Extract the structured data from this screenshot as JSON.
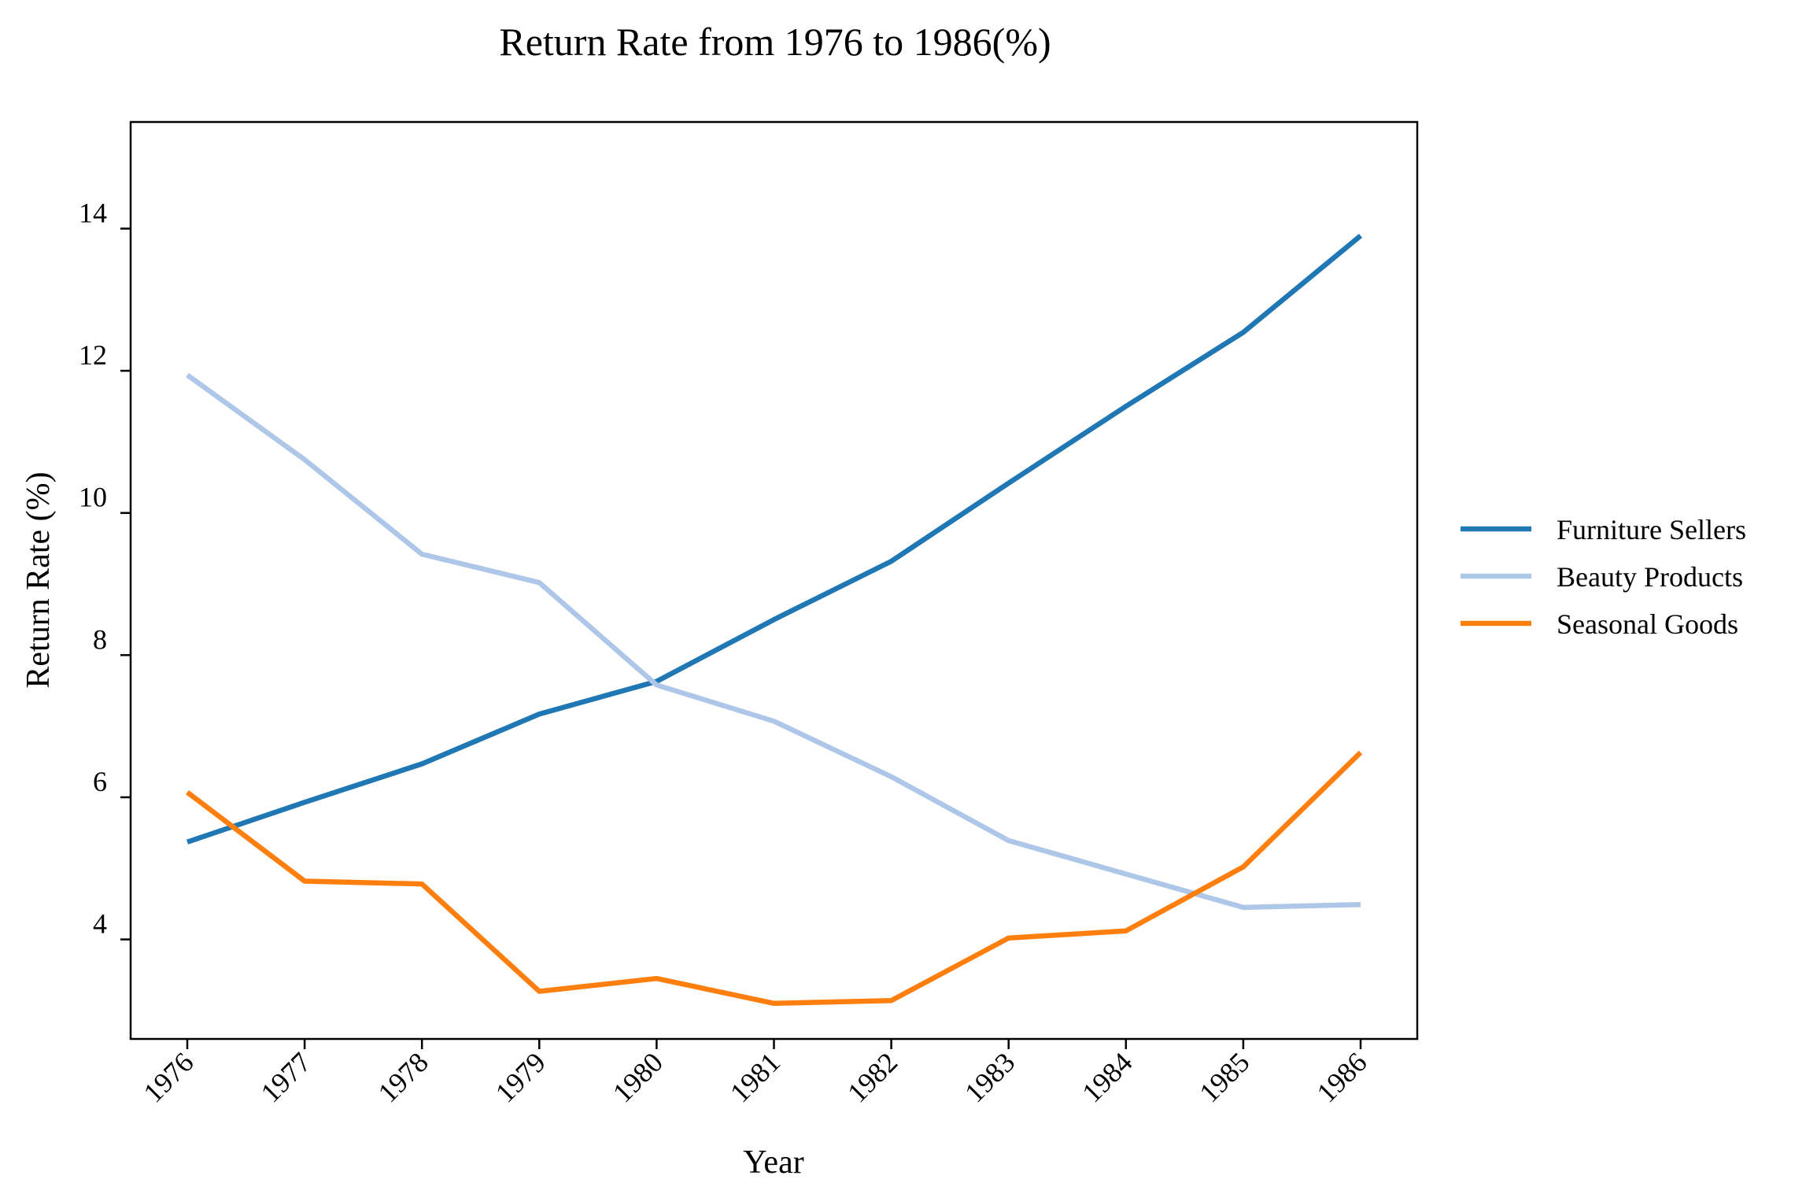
{
  "chart_data": {
    "type": "line",
    "title": "Return Rate from 1976 to 1986(%)",
    "xlabel": "Year",
    "ylabel": "Return Rate (%)",
    "x": [
      "1976",
      "1977",
      "1978",
      "1979",
      "1980",
      "1981",
      "1982",
      "1983",
      "1984",
      "1985",
      "1986"
    ],
    "yticks": [
      "4",
      "6",
      "8",
      "10",
      "12",
      "14"
    ],
    "ylim": [
      2.6,
      15.5
    ],
    "grid": false,
    "legend_position": "right",
    "series": [
      {
        "name": "Furniture Sellers",
        "color": "#1f77b4",
        "values": [
          5.37,
          5.93,
          6.47,
          7.17,
          7.63,
          8.5,
          9.32,
          10.42,
          11.5,
          12.54,
          13.9
        ]
      },
      {
        "name": "Beauty Products",
        "color": "#aec7e8",
        "values": [
          11.94,
          10.75,
          9.42,
          9.02,
          7.58,
          7.07,
          6.29,
          5.39,
          4.92,
          4.45,
          4.49
        ]
      },
      {
        "name": "Seasonal Goods",
        "color": "#ff7f0e",
        "values": [
          6.07,
          4.82,
          4.78,
          3.27,
          3.45,
          3.1,
          3.14,
          4.02,
          4.12,
          5.02,
          6.63
        ]
      }
    ]
  }
}
